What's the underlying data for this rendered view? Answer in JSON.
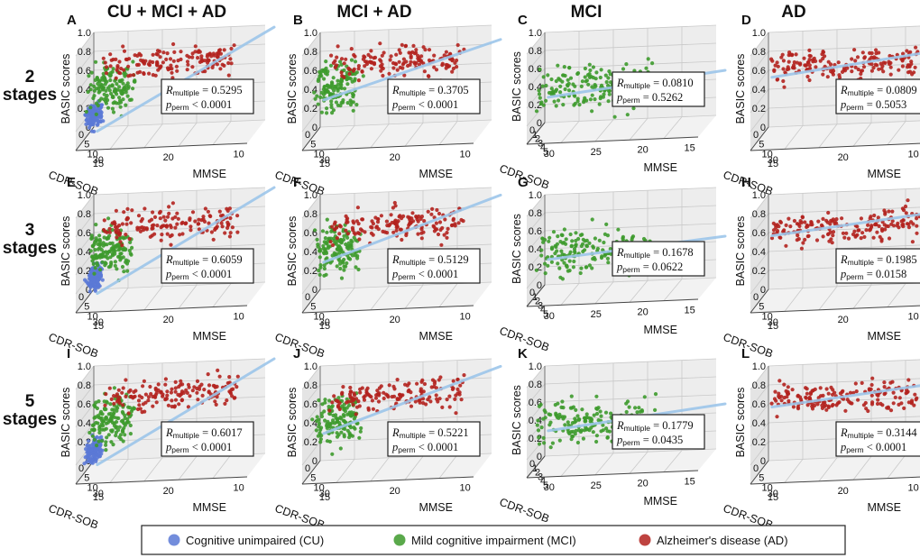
{
  "columns": [
    "CU + MCI + AD",
    "MCI + AD",
    "MCI",
    "AD"
  ],
  "rows": [
    "2\nstages",
    "3\nstages",
    "5\nstages"
  ],
  "rows_lines": [
    [
      "2",
      "stages"
    ],
    [
      "3",
      "stages"
    ],
    [
      "5",
      "stages"
    ]
  ],
  "colors": {
    "CU": "#5b79d6",
    "MCI": "#3d9a2c",
    "AD": "#b3221e",
    "fit": "#9dc6ea",
    "pane": "#ededed",
    "grid": "#c9c9c9"
  },
  "axis_labels": {
    "x": "MMSE",
    "y": "CDR-SOB",
    "z": "BASIC scores",
    "p_sub": "perm",
    "r_sub": "multiple"
  },
  "legend": [
    {
      "group": "CU",
      "label": "Cognitive unimpaired (CU)"
    },
    {
      "group": "MCI",
      "label": "Mild cognitive impairment (MCI)"
    },
    {
      "group": "AD",
      "label": "Alzheimer's disease (AD)"
    }
  ],
  "chart_data": [
    {
      "panel": "A",
      "row": 0,
      "col": 0,
      "type": "scatter",
      "groups": [
        "CU",
        "MCI",
        "AD"
      ],
      "R_multiple": "0.5295",
      "p_perm": "< 0.0001",
      "mmse_ticks": [
        "30",
        "20",
        "10"
      ],
      "cdr_ticks": [
        "0",
        "5",
        "10",
        "15"
      ],
      "basic_ticks": [
        "0",
        "0.2",
        "0.4",
        "0.6",
        "0.8",
        "1.0"
      ],
      "fit": [
        0.05,
        0.98
      ]
    },
    {
      "panel": "B",
      "row": 0,
      "col": 1,
      "type": "scatter",
      "groups": [
        "MCI",
        "AD"
      ],
      "R_multiple": "0.3705",
      "p_perm": "< 0.0001",
      "mmse_ticks": [
        "30",
        "20",
        "10"
      ],
      "cdr_ticks": [
        "0",
        "5",
        "10",
        "15"
      ],
      "basic_ticks": [
        "0",
        "0.2",
        "0.4",
        "0.6",
        "0.8",
        "1.0"
      ],
      "fit": [
        0.38,
        0.85
      ]
    },
    {
      "panel": "C",
      "row": 0,
      "col": 2,
      "type": "scatter",
      "groups": [
        "MCI"
      ],
      "R_multiple": "0.0810",
      "p_perm": "= 0.5262",
      "mmse_ticks": [
        "30",
        "25",
        "20",
        "15"
      ],
      "cdr_ticks": [
        "0",
        "1",
        "2",
        "3",
        "4",
        "5"
      ],
      "basic_ticks": [
        "0",
        "0.2",
        "0.4",
        "0.6",
        "0.8",
        "1.0"
      ],
      "fit": [
        0.38,
        0.5
      ]
    },
    {
      "panel": "D",
      "row": 0,
      "col": 3,
      "type": "scatter",
      "groups": [
        "AD"
      ],
      "R_multiple": "0.0809",
      "p_perm": "= 0.5053",
      "mmse_ticks": [
        "30",
        "20",
        "10"
      ],
      "cdr_ticks": [
        "0",
        "5",
        "10",
        "15"
      ],
      "basic_ticks": [
        "0",
        "0.2",
        "0.4",
        "0.6",
        "0.8",
        "1.0"
      ],
      "fit": [
        0.62,
        0.75
      ]
    },
    {
      "panel": "E",
      "row": 1,
      "col": 0,
      "type": "scatter",
      "groups": [
        "CU",
        "MCI",
        "AD"
      ],
      "R_multiple": "0.6059",
      "p_perm": "< 0.0001",
      "mmse_ticks": [
        "30",
        "20",
        "10"
      ],
      "cdr_ticks": [
        "0",
        "5",
        "10",
        "15"
      ],
      "basic_ticks": [
        "0",
        "0.2",
        "0.4",
        "0.6",
        "0.8",
        "1.0"
      ],
      "fit": [
        0.05,
        1.0
      ]
    },
    {
      "panel": "F",
      "row": 1,
      "col": 1,
      "type": "scatter",
      "groups": [
        "MCI",
        "AD"
      ],
      "R_multiple": "0.5129",
      "p_perm": "< 0.0001",
      "mmse_ticks": [
        "30",
        "20",
        "10"
      ],
      "cdr_ticks": [
        "0",
        "5",
        "10",
        "15"
      ],
      "basic_ticks": [
        "0",
        "0.2",
        "0.4",
        "0.6",
        "0.8",
        "1.0"
      ],
      "fit": [
        0.38,
        0.92
      ]
    },
    {
      "panel": "G",
      "row": 1,
      "col": 2,
      "type": "scatter",
      "groups": [
        "MCI"
      ],
      "R_multiple": "0.1678",
      "p_perm": "= 0.0622",
      "mmse_ticks": [
        "30",
        "25",
        "20",
        "15"
      ],
      "cdr_ticks": [
        "0",
        "1",
        "2",
        "3",
        "4",
        "5"
      ],
      "basic_ticks": [
        "0",
        "0.2",
        "0.4",
        "0.6",
        "0.8",
        "1.0"
      ],
      "fit": [
        0.38,
        0.46
      ]
    },
    {
      "panel": "H",
      "row": 1,
      "col": 3,
      "type": "scatter",
      "groups": [
        "AD"
      ],
      "R_multiple": "0.1985",
      "p_perm": "= 0.0158",
      "mmse_ticks": [
        "30",
        "20",
        "10"
      ],
      "cdr_ticks": [
        "0",
        "5",
        "10",
        "15"
      ],
      "basic_ticks": [
        "0",
        "0.2",
        "0.4",
        "0.6",
        "0.8",
        "1.0"
      ],
      "fit": [
        0.66,
        0.76
      ]
    },
    {
      "panel": "I",
      "row": 2,
      "col": 0,
      "type": "scatter",
      "groups": [
        "CU",
        "MCI",
        "AD"
      ],
      "R_multiple": "0.6017",
      "p_perm": "< 0.0001",
      "mmse_ticks": [
        "30",
        "20",
        "10"
      ],
      "cdr_ticks": [
        "0",
        "5",
        "10",
        "15"
      ],
      "basic_ticks": [
        "0",
        "0.2",
        "0.4",
        "0.6",
        "0.8",
        "1.0"
      ],
      "fit": [
        0.05,
        1.0
      ]
    },
    {
      "panel": "J",
      "row": 2,
      "col": 1,
      "type": "scatter",
      "groups": [
        "MCI",
        "AD"
      ],
      "R_multiple": "0.5221",
      "p_perm": "< 0.0001",
      "mmse_ticks": [
        "30",
        "20",
        "10"
      ],
      "cdr_ticks": [
        "0",
        "5",
        "10",
        "15"
      ],
      "basic_ticks": [
        "0",
        "0.2",
        "0.4",
        "0.6",
        "0.8",
        "1.0"
      ],
      "fit": [
        0.38,
        0.92
      ]
    },
    {
      "panel": "K",
      "row": 2,
      "col": 2,
      "type": "scatter",
      "groups": [
        "MCI"
      ],
      "R_multiple": "0.1779",
      "p_perm": "= 0.0435",
      "mmse_ticks": [
        "30",
        "25",
        "20",
        "15"
      ],
      "cdr_ticks": [
        "0",
        "1",
        "2",
        "3",
        "4",
        "5"
      ],
      "basic_ticks": [
        "0",
        "0.2",
        "0.4",
        "0.6",
        "0.8",
        "1.0"
      ],
      "fit": [
        0.38,
        0.5
      ]
    },
    {
      "panel": "L",
      "row": 2,
      "col": 3,
      "type": "scatter",
      "groups": [
        "AD"
      ],
      "R_multiple": "0.3144",
      "p_perm": "< 0.0001",
      "mmse_ticks": [
        "30",
        "20",
        "10"
      ],
      "cdr_ticks": [
        "0",
        "5",
        "10",
        "15"
      ],
      "basic_ticks": [
        "0",
        "0.2",
        "0.4",
        "0.6",
        "0.8",
        "1.0"
      ],
      "fit": [
        0.66,
        0.76
      ]
    }
  ]
}
